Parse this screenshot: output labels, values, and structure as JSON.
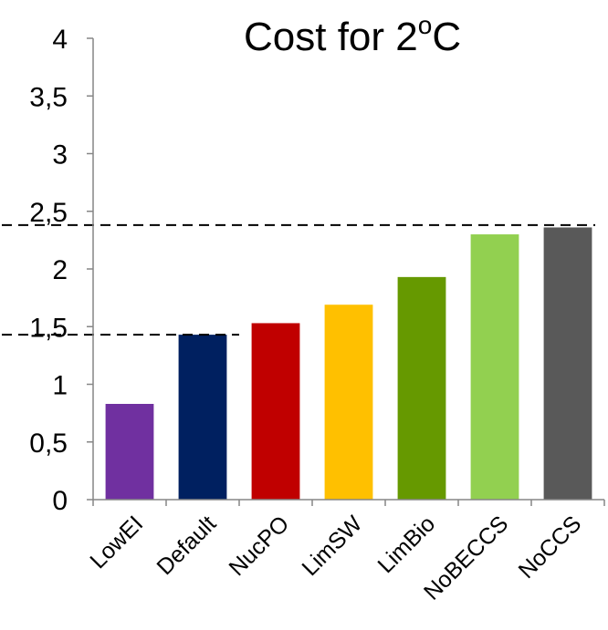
{
  "chart_data": {
    "type": "bar",
    "title": "Cost for 2",
    "title_superscript": "o",
    "title_suffix": "C",
    "xlabel": "",
    "ylabel": "",
    "ylim": [
      0,
      4
    ],
    "yticks": [
      "0",
      "0,5",
      "1",
      "1,5",
      "2",
      "2,5",
      "3",
      "3,5",
      "4"
    ],
    "categories": [
      "LowEI",
      "Default",
      "NucPO",
      "LimSW",
      "LimBio",
      "NoBECCS",
      "NoCCS"
    ],
    "values": [
      0.83,
      1.43,
      1.53,
      1.69,
      1.93,
      2.3,
      2.36
    ],
    "colors": [
      "#7030a0",
      "#002060",
      "#c00000",
      "#ffc000",
      "#669900",
      "#92d050",
      "#595959"
    ],
    "grid": false,
    "reference_lines": [
      1.43,
      2.38
    ]
  }
}
